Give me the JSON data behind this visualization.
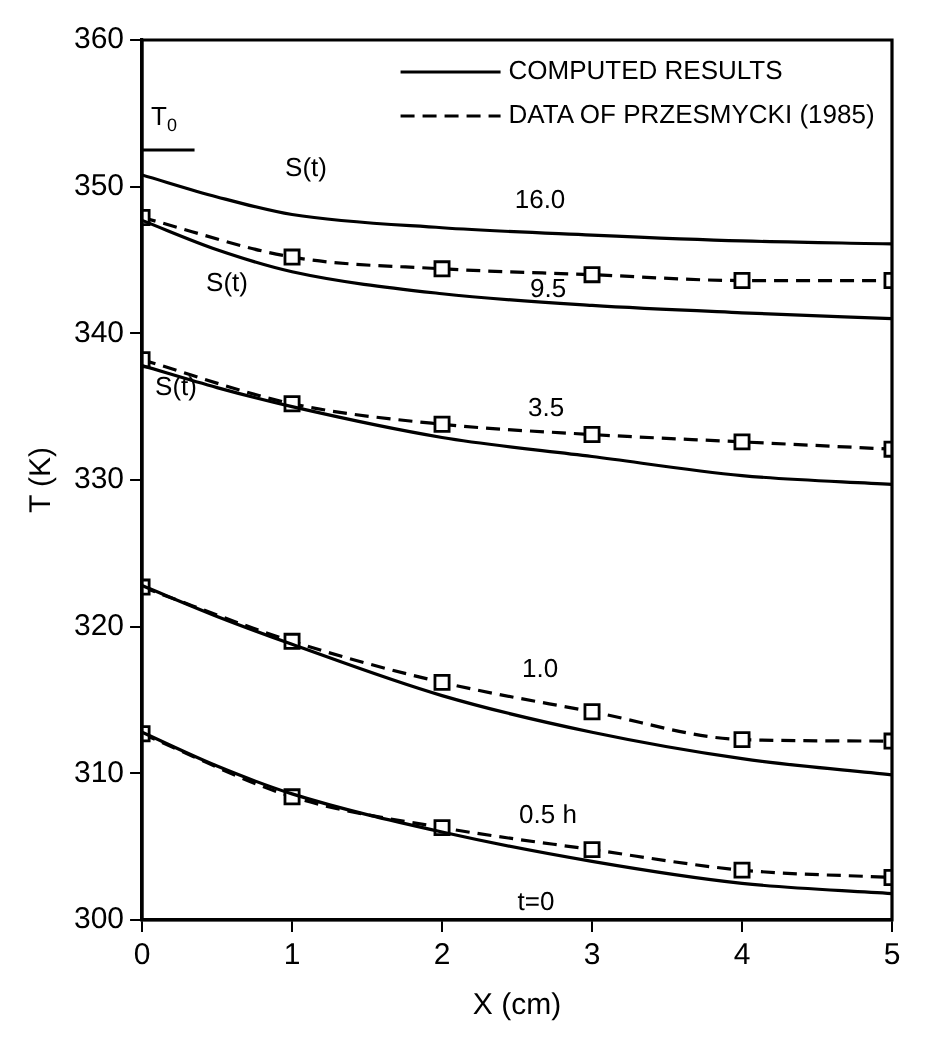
{
  "chart_data": {
    "type": "line",
    "xlabel": "X (cm)",
    "ylabel": "T (K)",
    "xlim": [
      0,
      5
    ],
    "xticks": [
      0,
      1,
      2,
      3,
      4,
      5
    ],
    "ylim": [
      300,
      360
    ],
    "yticks": [
      300,
      310,
      320,
      330,
      340,
      350,
      360
    ],
    "grid": false,
    "legend": "top right",
    "series": [
      {
        "name": "COMPUTED RESULTS",
        "color": "#000000",
        "line_style": "solid",
        "marker": "none",
        "x": [
          0,
          0.5,
          1,
          2,
          3,
          4,
          5
        ],
        "values": [
          312.8,
          310.5,
          308.6,
          306.0,
          304.0,
          302.5,
          301.8
        ]
      },
      {
        "color": "#000000",
        "line_style": "solid",
        "marker": "none",
        "x": [
          0,
          0.5,
          1,
          2,
          3,
          4,
          5
        ],
        "values": [
          322.8,
          320.7,
          318.8,
          315.3,
          312.8,
          311.0,
          309.9
        ]
      },
      {
        "color": "#000000",
        "line_style": "solid",
        "marker": "none",
        "x": [
          0,
          0.5,
          1,
          2,
          3,
          4,
          5
        ],
        "values": [
          337.8,
          336.3,
          335.0,
          332.9,
          331.6,
          330.3,
          329.7
        ]
      },
      {
        "color": "#000000",
        "line_style": "solid",
        "marker": "none",
        "x": [
          0,
          0.5,
          1,
          2,
          3,
          4,
          5
        ],
        "values": [
          347.7,
          345.7,
          344.2,
          342.7,
          341.9,
          341.4,
          341.0
        ]
      },
      {
        "color": "#000000",
        "line_style": "solid",
        "marker": "none",
        "x": [
          0,
          0.5,
          1,
          2,
          3,
          4,
          5
        ],
        "values": [
          350.8,
          349.3,
          348.1,
          347.2,
          346.7,
          346.3,
          346.1
        ]
      },
      {
        "name": "DATA OF PRZESMYCKI (1985)",
        "color": "#000000",
        "line_style": "dashed",
        "marker": "square",
        "x": [
          0,
          1,
          2,
          3,
          4,
          5
        ],
        "values": [
          312.7,
          308.4,
          306.3,
          304.8,
          303.4,
          302.9
        ]
      },
      {
        "color": "#000000",
        "line_style": "dashed",
        "marker": "square",
        "x": [
          0,
          1,
          2,
          3,
          4,
          5
        ],
        "values": [
          322.7,
          319.0,
          316.2,
          314.2,
          312.3,
          312.2
        ]
      },
      {
        "color": "#000000",
        "line_style": "dashed",
        "marker": "square",
        "x": [
          0,
          1,
          2,
          3,
          4,
          5
        ],
        "values": [
          338.2,
          335.2,
          333.8,
          333.1,
          332.6,
          332.1
        ]
      },
      {
        "color": "#000000",
        "line_style": "dashed",
        "marker": "square",
        "x": [
          0,
          1,
          2,
          3,
          4,
          5
        ],
        "values": [
          347.9,
          345.2,
          344.4,
          344.0,
          343.6,
          343.6
        ]
      },
      {
        "color": "#000000",
        "line_style": "solid",
        "marker": "none",
        "x": [
          0,
          0.35
        ],
        "values": [
          352.5,
          352.5
        ]
      }
    ],
    "annotations": [
      {
        "text": "16.0",
        "x": 3,
        "y": 346.7
      },
      {
        "text": "9.5",
        "x": 3,
        "y": 341.9
      },
      {
        "text": "3.5",
        "x": 3,
        "y": 333.1
      },
      {
        "text": "1.0",
        "x": 3,
        "y": 314.2
      },
      {
        "text": "0.5 h",
        "x": 3,
        "y": 304.8
      },
      {
        "text": "t=0",
        "x": 3,
        "y": 304.0
      },
      {
        "text": "S(t)",
        "x": 1,
        "y": 348.1
      },
      {
        "text": "S(t)",
        "x": 0.5,
        "y": 345.7
      },
      {
        "text": "S(t)",
        "x": 0,
        "y": 337.8
      },
      {
        "text": "T$_{0}$",
        "x": 0,
        "y": 352.5
      }
    ]
  }
}
